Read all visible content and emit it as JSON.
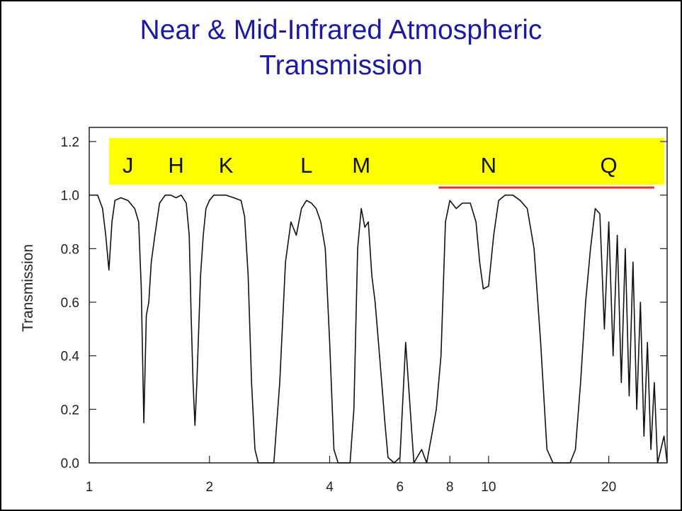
{
  "slide": {
    "title_line1": "Near & Mid-Infrared Atmospheric",
    "title_line2": "Transmission"
  },
  "colors": {
    "title": "#1a1aa6",
    "band_box": "#ffff00",
    "underline": "#e0302a",
    "curve": "#111111"
  },
  "chart_data": {
    "type": "line",
    "title": "",
    "xlabel": "",
    "ylabel": "Transmission",
    "x_scale": "log",
    "xlim": [
      1,
      28
    ],
    "ylim": [
      0,
      1.2
    ],
    "x_ticks": [
      {
        "value": 1,
        "label": "1"
      },
      {
        "value": 2,
        "label": "2"
      },
      {
        "value": 4,
        "label": "4"
      },
      {
        "value": 6,
        "label": "6"
      },
      {
        "value": 8,
        "label": "8"
      },
      {
        "value": 10,
        "label": "10"
      },
      {
        "value": 20,
        "label": "20"
      }
    ],
    "y_ticks": [
      {
        "value": 0.0,
        "label": "0.0"
      },
      {
        "value": 0.2,
        "label": "0.2"
      },
      {
        "value": 0.4,
        "label": "0.4"
      },
      {
        "value": 0.6,
        "label": "0.6"
      },
      {
        "value": 0.8,
        "label": "0.8"
      },
      {
        "value": 1.0,
        "label": "1.0"
      },
      {
        "value": 1.2,
        "label": "1.2"
      }
    ],
    "bands": [
      {
        "name": "J",
        "x": 1.25
      },
      {
        "name": "H",
        "x": 1.65
      },
      {
        "name": "K",
        "x": 2.2
      },
      {
        "name": "L",
        "x": 3.5
      },
      {
        "name": "M",
        "x": 4.8
      },
      {
        "name": "N",
        "x": 10.0
      },
      {
        "name": "Q",
        "x": 20.0
      }
    ],
    "highlight_x_range": [
      7.5,
      26
    ],
    "series": [
      {
        "x": [
          1.0,
          1.05,
          1.08,
          1.1,
          1.12,
          1.14,
          1.16,
          1.2,
          1.25,
          1.3,
          1.33,
          1.35,
          1.37,
          1.39,
          1.41,
          1.43,
          1.46,
          1.5,
          1.55,
          1.6,
          1.65,
          1.7,
          1.75,
          1.78,
          1.8,
          1.82,
          1.84,
          1.86,
          1.88,
          1.9,
          1.93,
          1.96,
          2.0,
          2.05,
          2.1,
          2.2,
          2.3,
          2.4,
          2.45,
          2.5,
          2.55,
          2.6,
          2.65,
          2.7,
          2.8,
          2.9,
          3.0,
          3.1,
          3.2,
          3.3,
          3.4,
          3.5,
          3.6,
          3.7,
          3.8,
          3.9,
          4.0,
          4.1,
          4.2,
          4.3,
          4.4,
          4.5,
          4.6,
          4.7,
          4.8,
          4.9,
          5.0,
          5.1,
          5.2,
          5.3,
          5.4,
          5.5,
          5.6,
          5.8,
          6.0,
          6.2,
          6.5,
          6.8,
          7.0,
          7.2,
          7.4,
          7.6,
          7.8,
          8.0,
          8.3,
          8.6,
          9.0,
          9.3,
          9.5,
          9.7,
          10.0,
          10.3,
          10.6,
          11.0,
          11.5,
          12.0,
          12.5,
          13.0,
          13.5,
          14.0,
          14.5,
          15.0,
          15.5,
          16.0,
          16.5,
          17.0,
          17.5,
          18.0,
          18.5,
          19.0,
          19.5,
          20.0,
          20.5,
          21.0,
          21.5,
          22.0,
          22.5,
          23.0,
          23.5,
          24.0,
          24.5,
          25.0,
          25.5,
          26.0,
          26.5,
          27.0,
          27.5,
          28.0
        ],
        "y": [
          1.0,
          1.0,
          0.95,
          0.85,
          0.72,
          0.9,
          0.98,
          0.99,
          0.98,
          0.95,
          0.9,
          0.65,
          0.15,
          0.55,
          0.6,
          0.75,
          0.85,
          0.97,
          1.0,
          1.0,
          0.99,
          1.0,
          0.97,
          0.85,
          0.55,
          0.3,
          0.14,
          0.3,
          0.5,
          0.7,
          0.85,
          0.95,
          0.98,
          1.0,
          1.0,
          1.0,
          0.99,
          0.98,
          0.92,
          0.7,
          0.3,
          0.05,
          0.0,
          0.0,
          0.0,
          0.0,
          0.3,
          0.75,
          0.9,
          0.85,
          0.95,
          0.98,
          0.97,
          0.95,
          0.9,
          0.8,
          0.45,
          0.05,
          0.0,
          0.0,
          0.0,
          0.0,
          0.2,
          0.8,
          0.95,
          0.88,
          0.9,
          0.7,
          0.6,
          0.45,
          0.3,
          0.15,
          0.02,
          0.0,
          0.02,
          0.45,
          0.0,
          0.05,
          0.0,
          0.1,
          0.2,
          0.4,
          0.9,
          0.98,
          0.95,
          0.97,
          0.97,
          0.9,
          0.75,
          0.65,
          0.66,
          0.85,
          0.98,
          1.0,
          1.0,
          0.98,
          0.95,
          0.8,
          0.45,
          0.05,
          0.0,
          0.0,
          0.0,
          0.0,
          0.05,
          0.3,
          0.6,
          0.8,
          0.95,
          0.93,
          0.5,
          0.9,
          0.4,
          0.85,
          0.3,
          0.8,
          0.25,
          0.75,
          0.2,
          0.6,
          0.1,
          0.45,
          0.05,
          0.3,
          0.0,
          0.05,
          0.1,
          0.0
        ]
      }
    ]
  }
}
